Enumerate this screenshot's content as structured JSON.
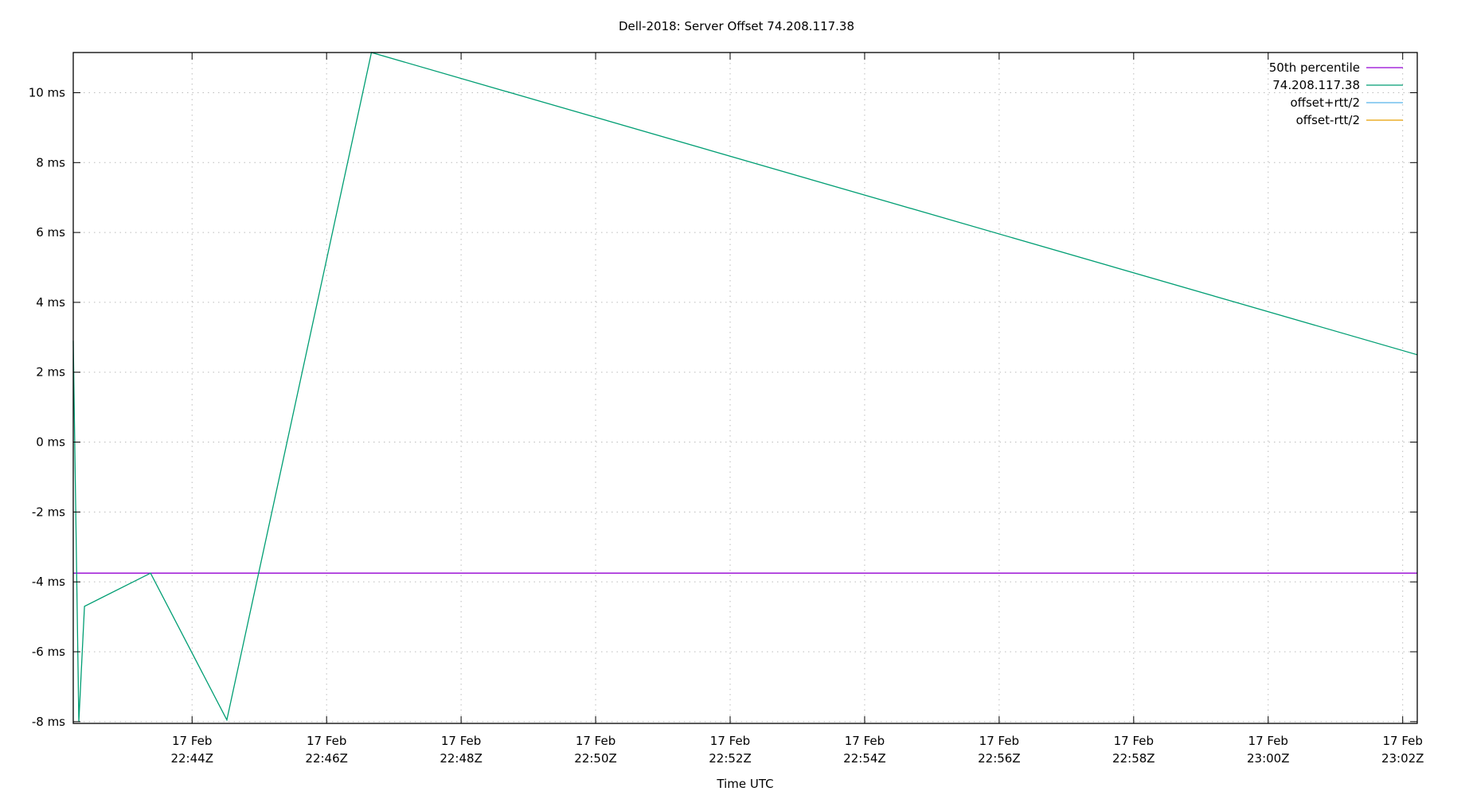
{
  "chart_data": {
    "type": "line",
    "title": "Dell-2018: Server Offset 74.208.117.38",
    "xlabel": "Time UTC",
    "ylabel": "",
    "xlim": [
      "22:42:14",
      "23:02:13"
    ],
    "ylim": [
      -8.05,
      11.15
    ],
    "grid": true,
    "legend_position": "top-right",
    "y_ticks": [
      {
        "value": -8,
        "label": "-8 ms"
      },
      {
        "value": -6,
        "label": "-6 ms"
      },
      {
        "value": -4,
        "label": "-4 ms"
      },
      {
        "value": -2,
        "label": "-2 ms"
      },
      {
        "value": 0,
        "label": "0 ms"
      },
      {
        "value": 2,
        "label": "2 ms"
      },
      {
        "value": 4,
        "label": "4 ms"
      },
      {
        "value": 6,
        "label": "6 ms"
      },
      {
        "value": 8,
        "label": "8 ms"
      },
      {
        "value": 10,
        "label": "10 ms"
      }
    ],
    "x_ticks": [
      {
        "value": "22:44:00",
        "date": "17 Feb",
        "time": "22:44Z"
      },
      {
        "value": "22:46:00",
        "date": "17 Feb",
        "time": "22:46Z"
      },
      {
        "value": "22:48:00",
        "date": "17 Feb",
        "time": "22:48Z"
      },
      {
        "value": "22:50:00",
        "date": "17 Feb",
        "time": "22:50Z"
      },
      {
        "value": "22:52:00",
        "date": "17 Feb",
        "time": "22:52Z"
      },
      {
        "value": "22:54:00",
        "date": "17 Feb",
        "time": "22:54Z"
      },
      {
        "value": "22:56:00",
        "date": "17 Feb",
        "time": "22:56Z"
      },
      {
        "value": "22:58:00",
        "date": "17 Feb",
        "time": "22:58Z"
      },
      {
        "value": "23:00:00",
        "date": "17 Feb",
        "time": "23:00Z"
      },
      {
        "value": "23:02:00",
        "date": "17 Feb",
        "time": "23:02Z"
      }
    ],
    "series": [
      {
        "name": "50th percentile",
        "color": "#9400d3",
        "x": [
          "22:42:14",
          "23:02:13"
        ],
        "y": [
          -3.75,
          -3.75
        ]
      },
      {
        "name": "74.208.117.38",
        "color": "#009e73",
        "x": [
          "22:42:14",
          "22:42:19",
          "22:42:24",
          "22:43:23",
          "22:44:31",
          "22:46:40",
          "23:02:13"
        ],
        "y": [
          2.9,
          -8.0,
          -4.7,
          -3.75,
          -7.95,
          11.15,
          2.5
        ]
      },
      {
        "name": "offset+rtt/2",
        "color": "#56b4e9",
        "x": [],
        "y": []
      },
      {
        "name": "offset-rtt/2",
        "color": "#e69f00",
        "x": [],
        "y": []
      }
    ]
  }
}
